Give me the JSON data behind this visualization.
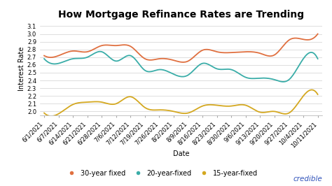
{
  "title": "How Mortgage Refinance Rates are Trending",
  "xlabel": "Date",
  "ylabel": "Interest Rate",
  "ylim": [
    1.95,
    3.15
  ],
  "yticks": [
    2.0,
    2.1,
    2.2,
    2.3,
    2.4,
    2.5,
    2.6,
    2.7,
    2.8,
    2.9,
    3.0,
    3.1
  ],
  "background_color": "#ffffff",
  "grid_color": "#d0d0d0",
  "dates": [
    "6/1/2021",
    "6/7/2021",
    "6/14/2021",
    "6/21/2021",
    "6/28/2021",
    "7/6/2021",
    "7/12/2021",
    "7/19/2021",
    "7/26/2021",
    "8/2/2021",
    "8/9/2021",
    "8/16/2021",
    "8/23/2021",
    "8/30/2021",
    "9/6/2021",
    "9/13/2021",
    "9/20/2021",
    "9/27/2021",
    "10/4/2021",
    "10/11/2021"
  ],
  "rate_30yr": [
    2.72,
    2.72,
    2.78,
    2.77,
    2.85,
    2.85,
    2.84,
    2.68,
    2.68,
    2.66,
    2.65,
    2.79,
    2.77,
    2.76,
    2.77,
    2.75,
    2.73,
    2.92,
    2.93,
    3.0
  ],
  "rate_20yr": [
    2.68,
    2.62,
    2.68,
    2.7,
    2.77,
    2.65,
    2.72,
    2.53,
    2.54,
    2.48,
    2.47,
    2.62,
    2.55,
    2.54,
    2.44,
    2.43,
    2.41,
    2.41,
    2.68,
    2.68
  ],
  "rate_15yr": [
    1.98,
    1.97,
    2.09,
    2.12,
    2.12,
    2.1,
    2.19,
    2.05,
    2.02,
    2.0,
    1.98,
    2.07,
    2.08,
    2.07,
    2.08,
    1.99,
    2.0,
    1.98,
    2.2,
    2.22
  ],
  "color_30yr": "#e07040",
  "color_20yr": "#3aada8",
  "color_15yr": "#d4a820",
  "legend_labels": [
    "30-year fixed",
    "20-year-fixed",
    "15-year-fixed"
  ],
  "credible_color": "#3355bb",
  "title_fontsize": 10,
  "axis_label_fontsize": 7,
  "tick_fontsize": 6,
  "legend_fontsize": 7
}
